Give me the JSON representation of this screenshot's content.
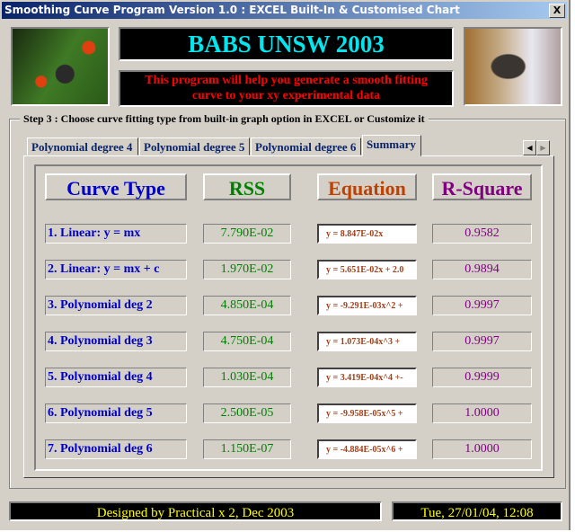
{
  "window": {
    "title": "Smoothing Curve Program Version 1.0 : EXCEL Built-In & Customised Chart",
    "close": "X"
  },
  "header": {
    "title": "BABS UNSW 2003",
    "subtitle_line1": "This program will help you generate a smooth fitting",
    "subtitle_line2": "curve to your xy experimental data"
  },
  "step": {
    "label": "Step 3 : Choose curve fitting type from built-in graph option in EXCEL or Customize it"
  },
  "tabs": [
    {
      "label": "Polynomial degree 4"
    },
    {
      "label": "Polynomial degree 5"
    },
    {
      "label": "Polynomial degree 6"
    },
    {
      "label": "Summary",
      "active": true
    }
  ],
  "table": {
    "headers": {
      "curve_type": "Curve Type",
      "rss": "RSS",
      "equation": "Equation",
      "r_square": "R-Square"
    },
    "rows": [
      {
        "type": "1. Linear: y = mx",
        "rss": "7.790E-02",
        "equation": "y = 8.847E-02x",
        "r2": "0.9582"
      },
      {
        "type": "2. Linear: y = mx + c",
        "rss": "1.970E-02",
        "equation": "y = 5.651E-02x + 2.0",
        "r2": "0.9894"
      },
      {
        "type": "3. Polynomial deg 2",
        "rss": "4.850E-04",
        "equation": "y = -9.291E-03x^2 +",
        "r2": "0.9997"
      },
      {
        "type": "4. Polynomial deg 3",
        "rss": "4.750E-04",
        "equation": "y = 1.073E-04x^3 +",
        "r2": "0.9997"
      },
      {
        "type": "5. Polynomial deg 4",
        "rss": "1.030E-04",
        "equation": "y = 3.419E-04x^4 +-",
        "r2": "0.9999"
      },
      {
        "type": "6. Polynomial deg 5",
        "rss": "2.500E-05",
        "equation": "y = -9.958E-05x^5 +",
        "r2": "1.0000"
      },
      {
        "type": "7. Polynomial deg 6",
        "rss": "1.150E-07",
        "equation": "y = -4.884E-05x^6 +",
        "r2": "1.0000"
      }
    ]
  },
  "footer": {
    "credit": "Designed by Practical x 2, Dec 2003",
    "datetime": "Tue, 27/01/04, 12:08"
  },
  "colors": {
    "title_cyan": "#00e5ee",
    "subtitle_red": "#ff0000",
    "curve_blue": "#0000cc",
    "rss_green": "#008000",
    "equation_orange": "#c04000",
    "r2_purple": "#800080",
    "footer_yellow": "#ffff00"
  }
}
